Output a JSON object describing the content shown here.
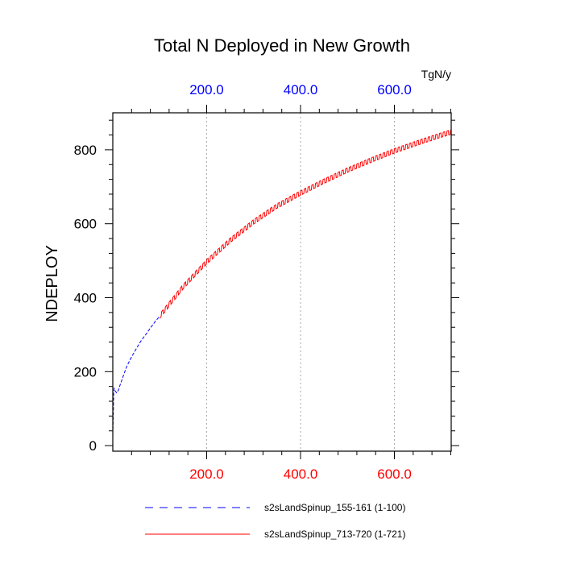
{
  "chart_data": {
    "type": "line",
    "title": "Total N Deployed in New Growth",
    "ylabel": "NDEPLOY",
    "units": "TgN/y",
    "xlim": [
      0,
      721
    ],
    "ylim": [
      -15,
      900
    ],
    "x_ticks_major": [
      {
        "value": 200,
        "label": "200.0"
      },
      {
        "value": 400,
        "label": "400.0"
      },
      {
        "value": 600,
        "label": "600.0"
      }
    ],
    "y_ticks_major": [
      {
        "value": 0,
        "label": "0"
      },
      {
        "value": 200,
        "label": "200"
      },
      {
        "value": 400,
        "label": "400"
      },
      {
        "value": 600,
        "label": "600"
      },
      {
        "value": 800,
        "label": "800"
      }
    ],
    "grid": "vertical dotted at major x ticks",
    "bottom_axis_color": "#ff0000",
    "top_axis_color": "#0000ff",
    "series": [
      {
        "name": "s2sLandSpinup_155-161 (1-100)",
        "color": "#0000ff",
        "style": "dashed",
        "x": [
          0,
          1,
          2,
          3,
          5,
          8,
          12,
          15,
          20,
          25,
          30,
          40,
          50,
          60,
          70,
          80,
          90,
          100
        ],
        "values": [
          30,
          80,
          150,
          155,
          148,
          143,
          150,
          162,
          180,
          198,
          215,
          240,
          262,
          283,
          300,
          318,
          335,
          350
        ]
      },
      {
        "name": "s2sLandSpinup_713-720 (1-721)",
        "color": "#ff0000",
        "style": "solid",
        "x": [
          100,
          150,
          200,
          250,
          300,
          350,
          400,
          450,
          500,
          550,
          600,
          650,
          700,
          721
        ],
        "values": [
          350,
          430,
          497,
          555,
          605,
          648,
          683,
          715,
          745,
          772,
          797,
          819,
          840,
          848
        ],
        "oscillation_amplitude": 12
      }
    ]
  }
}
